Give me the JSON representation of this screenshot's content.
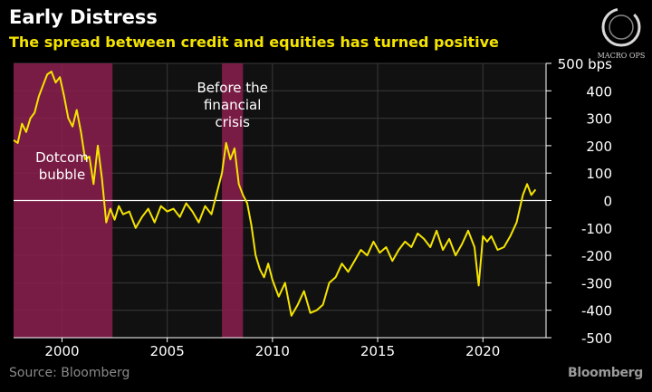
{
  "header": {
    "title": "Early Distress",
    "subtitle": "The spread between credit and equities has turned positive"
  },
  "footer": {
    "source": "Source: Bloomberg",
    "brand": "Bloomberg"
  },
  "watermark": {
    "text": "MACRO OPS",
    "icon": "macro-ops-logo-icon"
  },
  "colors": {
    "background": "#000000",
    "plot_background": "#111111",
    "line": "#f5e400",
    "shade": "#8c1f4f",
    "zero_line": "#ffffff",
    "grid": "#3a3a3a"
  },
  "chart_data": {
    "type": "line",
    "title": "Early Distress",
    "subtitle": "The spread between credit and equities has turned positive",
    "xlabel": "",
    "ylabel": "",
    "xlim": [
      1997.7,
      2023.0
    ],
    "ylim": [
      -500,
      500
    ],
    "grid": "on",
    "y_ticks": [
      {
        "value": 500,
        "label": "500 bps"
      },
      {
        "value": 400,
        "label": "400"
      },
      {
        "value": 300,
        "label": "300"
      },
      {
        "value": 200,
        "label": "200"
      },
      {
        "value": 100,
        "label": "100"
      },
      {
        "value": 0,
        "label": "0"
      },
      {
        "value": -100,
        "label": "-100"
      },
      {
        "value": -200,
        "label": "-200"
      },
      {
        "value": -300,
        "label": "-300"
      },
      {
        "value": -400,
        "label": "-400"
      },
      {
        "value": -500,
        "label": "-500"
      }
    ],
    "x_ticks": [
      {
        "value": 2000,
        "label": "2000"
      },
      {
        "value": 2005,
        "label": "2005"
      },
      {
        "value": 2010,
        "label": "2010"
      },
      {
        "value": 2015,
        "label": "2015"
      },
      {
        "value": 2020,
        "label": "2020"
      }
    ],
    "shaded_regions": [
      {
        "start": 1997.7,
        "end": 2002.4,
        "label": "Dotcom bubble",
        "lines": [
          "Dotcom",
          "bubble"
        ],
        "label_x": 2000.0,
        "label_y": 140
      },
      {
        "start": 2007.6,
        "end": 2008.6,
        "label": "Before the financial crisis",
        "lines": [
          "Before the",
          "financial",
          "crisis"
        ],
        "label_x": 2008.1,
        "label_y": 395
      }
    ],
    "series": [
      {
        "x": [
          1997.7,
          1997.9,
          1998.1,
          1998.3,
          1998.5,
          1998.7,
          1998.9,
          1999.1,
          1999.3,
          1999.5,
          1999.7,
          1999.9,
          2000.1,
          2000.3,
          2000.5,
          2000.7,
          2000.9,
          2001.1,
          2001.3,
          2001.5,
          2001.7,
          2001.9,
          2002.1,
          2002.3,
          2002.5,
          2002.7,
          2002.9,
          2003.2,
          2003.5,
          2003.8,
          2004.1,
          2004.4,
          2004.7,
          2005.0,
          2005.3,
          2005.6,
          2005.9,
          2006.2,
          2006.5,
          2006.8,
          2007.1,
          2007.4,
          2007.6,
          2007.8,
          2008.0,
          2008.2,
          2008.4,
          2008.6,
          2008.8,
          2009.0,
          2009.2,
          2009.4,
          2009.6,
          2009.8,
          2010.0,
          2010.3,
          2010.6,
          2010.9,
          2011.2,
          2011.5,
          2011.8,
          2012.1,
          2012.4,
          2012.7,
          2013.0,
          2013.3,
          2013.6,
          2013.9,
          2014.2,
          2014.5,
          2014.8,
          2015.1,
          2015.4,
          2015.7,
          2016.0,
          2016.3,
          2016.6,
          2016.9,
          2017.2,
          2017.5,
          2017.8,
          2018.1,
          2018.4,
          2018.7,
          2019.0,
          2019.3,
          2019.6,
          2019.8,
          2020.0,
          2020.2,
          2020.4,
          2020.7,
          2021.0,
          2021.3,
          2021.6,
          2021.9,
          2022.1,
          2022.3,
          2022.5
        ],
        "y": [
          220,
          210,
          280,
          250,
          300,
          320,
          380,
          420,
          460,
          470,
          430,
          450,
          380,
          300,
          270,
          330,
          250,
          150,
          160,
          60,
          200,
          80,
          -80,
          -30,
          -70,
          -20,
          -50,
          -40,
          -100,
          -60,
          -30,
          -80,
          -20,
          -40,
          -30,
          -60,
          -10,
          -40,
          -80,
          -20,
          -50,
          40,
          100,
          210,
          150,
          190,
          60,
          20,
          -10,
          -90,
          -200,
          -250,
          -280,
          -230,
          -290,
          -350,
          -300,
          -420,
          -380,
          -330,
          -410,
          -400,
          -380,
          -300,
          -280,
          -230,
          -260,
          -220,
          -180,
          -200,
          -150,
          -190,
          -170,
          -220,
          -180,
          -150,
          -170,
          -120,
          -140,
          -170,
          -110,
          -180,
          -140,
          -200,
          -160,
          -110,
          -170,
          -310,
          -130,
          -150,
          -130,
          -180,
          -170,
          -130,
          -80,
          20,
          60,
          20,
          40
        ]
      }
    ]
  }
}
